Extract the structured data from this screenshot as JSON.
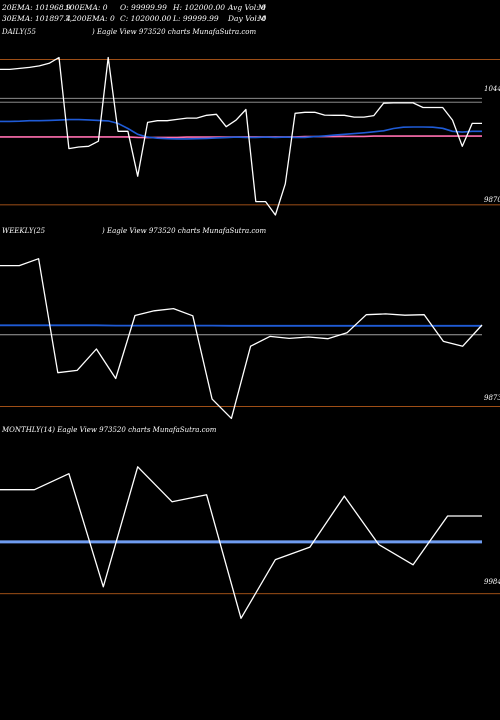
{
  "header": {
    "line1_a": "20EMA: 101968.9",
    "line1_b": "100EMA: 0",
    "line1_c": "O: 99999.99",
    "line1_d": "H: 102000.00",
    "line1_e": "Avg Vol: 0",
    "line1_f": "M",
    "line2_a": "30EMA: 101897.4",
    "line2_b": "7,200EMA: 0",
    "line2_c": "C: 102000.00",
    "line2_d": "L: 99999.99",
    "line2_e": "Day Vol: 0",
    "line2_f": "M"
  },
  "colors": {
    "background": "#000000",
    "price": "#ffffff",
    "ema_blue": "#1f5bd6",
    "ema_light_blue": "#6f9cf0",
    "ema_pink": "#ff6fb0",
    "ref_line": "#c8c8c8",
    "level_line": "#d2691e"
  },
  "chart_data": [
    {
      "type": "line",
      "name": "daily",
      "label_left": "DAILY(55",
      "label_right": ") Eagle   View  973520  charts MunafaSutra.com",
      "y_top_label": "10443",
      "y_bottom_label": "9870",
      "ylim": [
        9830,
        10520
      ],
      "levels": [
        10443,
        9870
      ],
      "ref": [
        10290,
        10275
      ],
      "series": [
        {
          "values": [
            10404,
            10404,
            10408,
            10412,
            10418,
            10428,
            10451,
            10092,
            10098,
            10101,
            10121,
            10451,
            10160,
            10160,
            9983,
            10195,
            10202,
            10202,
            10207,
            10212,
            10212,
            10223,
            10227,
            10178,
            10204,
            10246,
            9883,
            9883,
            9830,
            9953,
            10231,
            10235,
            10235,
            10224,
            10223,
            10223,
            10216,
            10216,
            10222,
            10271,
            10272,
            10272,
            10272,
            10254,
            10254,
            10254,
            10204,
            10101,
            10191,
            10191
          ]
        },
        {
          "values": [
            10199,
            10199,
            10200,
            10202,
            10202,
            10203,
            10204,
            10206,
            10206,
            10205,
            10203,
            10201,
            10191,
            10171,
            10148,
            10137,
            10133,
            10131,
            10130,
            10130,
            10131,
            10132,
            10134,
            10135,
            10137,
            10136,
            10136,
            10137,
            10136,
            10137,
            10136,
            10136,
            10139,
            10142,
            10145,
            10148,
            10151,
            10154,
            10158,
            10162,
            10171,
            10176,
            10177,
            10177,
            10176,
            10172,
            10160,
            10157,
            10160,
            10160
          ]
        },
        {
          "values": [
            10138,
            10138,
            10138,
            10138,
            10138,
            10138,
            10138,
            10138,
            10138,
            10138,
            10138,
            10138,
            10138,
            10138,
            10136,
            10135,
            10136,
            10136,
            10136,
            10137,
            10137,
            10137,
            10137,
            10137,
            10138,
            10138,
            10138,
            10138,
            10138,
            10138,
            10138,
            10139,
            10139,
            10139,
            10139,
            10140,
            10140,
            10140,
            10141,
            10141,
            10141,
            10141,
            10141,
            10141,
            10141,
            10141,
            10141,
            10141,
            10141,
            10141
          ]
        }
      ]
    },
    {
      "type": "line",
      "name": "weekly",
      "label_left": "WEEKLY(25",
      "label_right": ") Eagle   View  973520  charts MunafaSutra.com",
      "y_bottom_label": "9873",
      "ylim": [
        9860,
        10470
      ],
      "levels": [
        9873
      ],
      "ref": [
        10130
      ],
      "series": [
        {
          "values": [
            10378,
            10378,
            10403,
            9994,
            10002,
            10079,
            9973,
            10199,
            10216,
            10224,
            10198,
            9899,
            9830,
            10089,
            10124,
            10117,
            10122,
            10116,
            10137,
            10202,
            10205,
            10200,
            10202,
            10106,
            10089,
            10165
          ]
        },
        {
          "values": [
            10164,
            10164,
            10164,
            10164,
            10164,
            10164,
            10163,
            10163,
            10163,
            10163,
            10163,
            10163,
            10162,
            10162,
            10162,
            10162,
            10162,
            10162,
            10162,
            10162,
            10162,
            10162,
            10162,
            10162,
            10162,
            10162
          ]
        }
      ]
    },
    {
      "type": "line",
      "name": "monthly",
      "label_left": "MONTHLY(14) Eagle   View  973520  charts MunafaSutra.com",
      "y_bottom_label": "9984",
      "ylim": [
        9900,
        10340
      ],
      "levels": [
        9984
      ],
      "series": [
        {
          "values": [
            10225,
            10225,
            10262,
            10000,
            10278,
            10197,
            10213,
            9927,
            10063,
            10092,
            10210,
            10098,
            10051,
            10164,
            10164
          ]
        },
        {
          "values": [
            10104,
            10104,
            10104,
            10104,
            10104,
            10104,
            10104,
            10104,
            10104,
            10104,
            10104,
            10104,
            10104,
            10104,
            10104
          ]
        }
      ]
    }
  ]
}
